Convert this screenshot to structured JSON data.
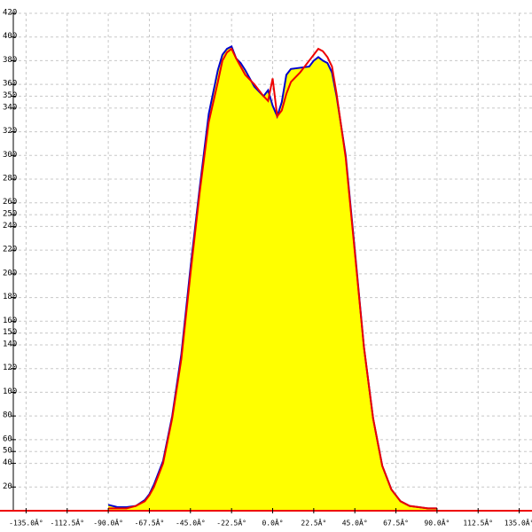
{
  "chart_data": {
    "type": "area-line",
    "x": [
      -90,
      -85,
      -80,
      -75,
      -70,
      -67.5,
      -65,
      -60,
      -55,
      -50,
      -45,
      -40,
      -35,
      -30,
      -27.5,
      -25,
      -22.5,
      -20,
      -17.5,
      -15,
      -10,
      -5,
      -2.5,
      0,
      2.5,
      5,
      7.5,
      10,
      15,
      20,
      22.5,
      25,
      27.5,
      30,
      32.5,
      35,
      40,
      45,
      50,
      55,
      60,
      65,
      70,
      75,
      80,
      85,
      90
    ],
    "series": [
      {
        "color": "#0000cc",
        "fill": "#ffff00",
        "values": [
          5,
          3,
          3,
          4,
          9,
          14,
          22,
          42,
          80,
          132,
          205,
          272,
          335,
          372,
          385,
          390,
          392,
          382,
          378,
          372,
          358,
          350,
          355,
          342,
          333,
          345,
          368,
          373,
          374,
          375,
          380,
          383,
          380,
          378,
          370,
          350,
          300,
          220,
          138,
          78,
          38,
          18,
          8,
          4,
          3,
          2,
          2
        ]
      },
      {
        "color": "#ee0000",
        "values": [
          2,
          2,
          2,
          4,
          8,
          13,
          20,
          40,
          78,
          128,
          200,
          268,
          328,
          362,
          380,
          387,
          390,
          382,
          375,
          368,
          360,
          350,
          346,
          365,
          333,
          338,
          352,
          362,
          370,
          380,
          385,
          390,
          388,
          383,
          375,
          352,
          298,
          218,
          138,
          78,
          38,
          18,
          8,
          4,
          3,
          2,
          2
        ]
      }
    ],
    "xlim": [
      -142,
      142
    ],
    "ylim": [
      0,
      420
    ],
    "xticks": [
      {
        "value": -135,
        "label": "-135.0Â°"
      },
      {
        "value": -112.5,
        "label": "-112.5Â°"
      },
      {
        "value": -90,
        "label": "-90.0Â°"
      },
      {
        "value": -67.5,
        "label": "-67.5Â°"
      },
      {
        "value": -45,
        "label": "-45.0Â°"
      },
      {
        "value": -22.5,
        "label": "-22.5Â°"
      },
      {
        "value": 0,
        "label": "0.0Â°"
      },
      {
        "value": 22.5,
        "label": "22.5Â°"
      },
      {
        "value": 45,
        "label": "45.0Â°"
      },
      {
        "value": 67.5,
        "label": "67.5Â°"
      },
      {
        "value": 90,
        "label": "90.0Â°"
      },
      {
        "value": 112.5,
        "label": "112.5Â°"
      },
      {
        "value": 135,
        "label": "135.0Â°"
      }
    ],
    "yticks": [
      20,
      40,
      50,
      60,
      80,
      100,
      120,
      140,
      150,
      160,
      180,
      200,
      220,
      240,
      250,
      260,
      280,
      300,
      320,
      340,
      350,
      360,
      380,
      400,
      420
    ],
    "grid": true
  }
}
